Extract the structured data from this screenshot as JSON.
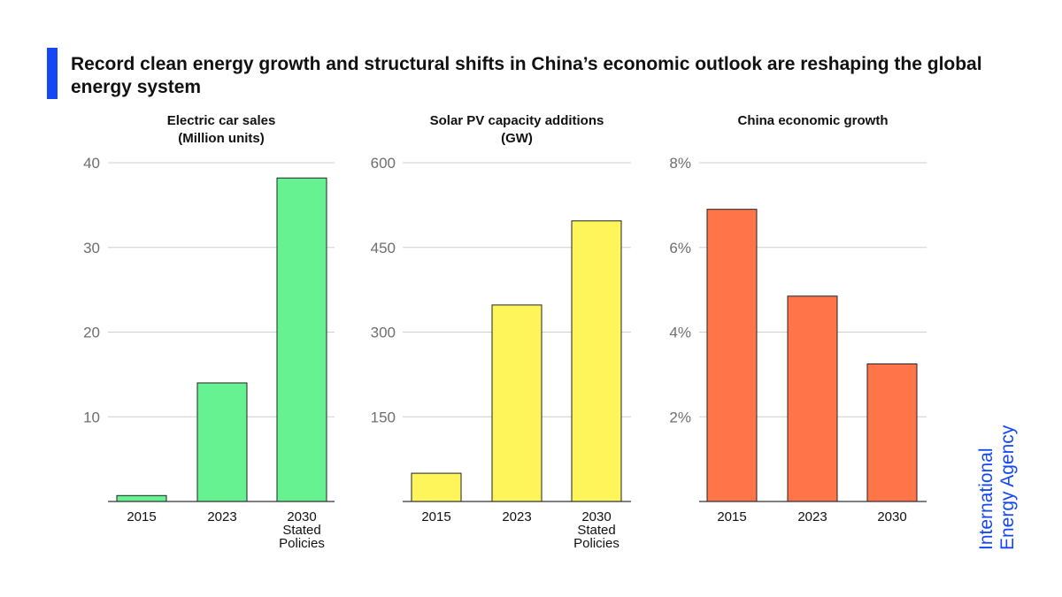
{
  "title": "Record clean energy growth and structural shifts in China’s economic outlook are reshaping the global energy system",
  "logo": {
    "line1": "International",
    "line2": "Energy Agency"
  },
  "colors": {
    "accent": "#1447f5"
  },
  "chart_data": [
    {
      "type": "bar",
      "title": [
        "Electric car sales",
        "(Million units)"
      ],
      "categories": [
        [
          "2015"
        ],
        [
          "2023"
        ],
        [
          "2030",
          "Stated",
          "Policies"
        ]
      ],
      "values": [
        0.7,
        14,
        38.2
      ],
      "ylim": [
        0,
        40
      ],
      "yticks": [
        10,
        20,
        30,
        40
      ],
      "ytick_labels": [
        "10",
        "20",
        "30",
        "40"
      ],
      "color": "#66f290",
      "xlabel": "",
      "ylabel": "",
      "grid": true
    },
    {
      "type": "bar",
      "title": [
        "Solar PV capacity additions",
        "(GW)"
      ],
      "categories": [
        [
          "2015"
        ],
        [
          "2023"
        ],
        [
          "2030",
          "Stated",
          "Policies"
        ]
      ],
      "values": [
        50,
        348,
        497
      ],
      "ylim": [
        0,
        600
      ],
      "yticks": [
        150,
        300,
        450,
        600
      ],
      "ytick_labels": [
        "150",
        "300",
        "450",
        "600"
      ],
      "color": "#fdf55a",
      "xlabel": "",
      "ylabel": "",
      "grid": true
    },
    {
      "type": "bar",
      "title": [
        "China economic growth"
      ],
      "categories": [
        [
          "2015"
        ],
        [
          "2023"
        ],
        [
          "2030"
        ]
      ],
      "values": [
        6.9,
        4.85,
        3.25
      ],
      "ylim": [
        0,
        8
      ],
      "yticks": [
        2,
        4,
        6,
        8
      ],
      "ytick_labels": [
        "2%",
        "4%",
        "6%",
        "8%"
      ],
      "color": "#ff7449",
      "xlabel": "",
      "ylabel": "",
      "grid": true
    }
  ]
}
